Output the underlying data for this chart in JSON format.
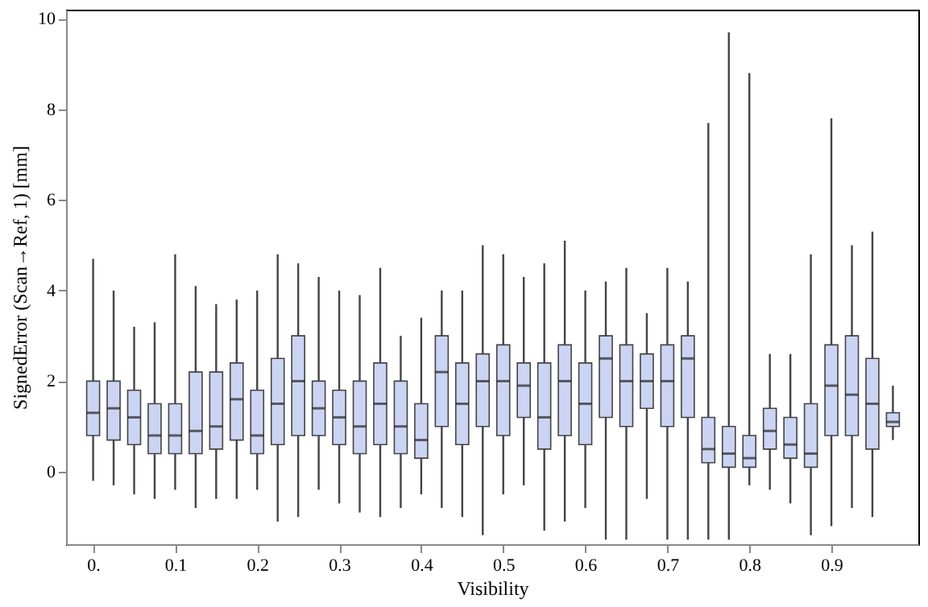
{
  "chart_data": {
    "type": "box",
    "xlabel": "Visibility",
    "ylabel": "SignedError (Scan→Ref, 1) [mm]",
    "x": [
      0,
      0.025,
      0.05,
      0.075,
      0.1,
      0.125,
      0.15,
      0.175,
      0.2,
      0.225,
      0.25,
      0.275,
      0.3,
      0.325,
      0.35,
      0.375,
      0.4,
      0.425,
      0.45,
      0.475,
      0.5,
      0.525,
      0.55,
      0.575,
      0.6,
      0.625,
      0.65,
      0.675,
      0.7,
      0.725,
      0.75,
      0.775,
      0.8,
      0.825,
      0.85,
      0.875,
      0.9,
      0.925,
      0.95,
      0.975
    ],
    "boxes": [
      {
        "low": -0.2,
        "q1": 0.8,
        "median": 1.3,
        "q3": 2.0,
        "high": 4.7
      },
      {
        "low": -0.3,
        "q1": 0.7,
        "median": 1.4,
        "q3": 2.0,
        "high": 4.0
      },
      {
        "low": -0.5,
        "q1": 0.6,
        "median": 1.2,
        "q3": 1.8,
        "high": 3.2
      },
      {
        "low": -0.6,
        "q1": 0.4,
        "median": 0.8,
        "q3": 1.5,
        "high": 3.3
      },
      {
        "low": -0.4,
        "q1": 0.4,
        "median": 0.8,
        "q3": 1.5,
        "high": 4.8
      },
      {
        "low": -0.8,
        "q1": 0.4,
        "median": 0.9,
        "q3": 2.2,
        "high": 4.1
      },
      {
        "low": -0.6,
        "q1": 0.5,
        "median": 1.0,
        "q3": 2.2,
        "high": 3.7
      },
      {
        "low": -0.6,
        "q1": 0.7,
        "median": 1.6,
        "q3": 2.4,
        "high": 3.8
      },
      {
        "low": -0.4,
        "q1": 0.4,
        "median": 0.8,
        "q3": 1.8,
        "high": 4.0
      },
      {
        "low": -1.1,
        "q1": 0.6,
        "median": 1.5,
        "q3": 2.5,
        "high": 4.8
      },
      {
        "low": -1.0,
        "q1": 0.8,
        "median": 2.0,
        "q3": 3.0,
        "high": 4.6
      },
      {
        "low": -0.4,
        "q1": 0.8,
        "median": 1.4,
        "q3": 2.0,
        "high": 4.3
      },
      {
        "low": -0.7,
        "q1": 0.6,
        "median": 1.2,
        "q3": 1.8,
        "high": 4.0
      },
      {
        "low": -0.9,
        "q1": 0.4,
        "median": 1.0,
        "q3": 2.0,
        "high": 3.9
      },
      {
        "low": -1.0,
        "q1": 0.6,
        "median": 1.5,
        "q3": 2.4,
        "high": 4.5
      },
      {
        "low": -0.8,
        "q1": 0.4,
        "median": 1.0,
        "q3": 2.0,
        "high": 3.0
      },
      {
        "low": -0.5,
        "q1": 0.3,
        "median": 0.7,
        "q3": 1.5,
        "high": 3.4
      },
      {
        "low": -0.8,
        "q1": 1.0,
        "median": 2.2,
        "q3": 3.0,
        "high": 4.0
      },
      {
        "low": -1.0,
        "q1": 0.6,
        "median": 1.5,
        "q3": 2.4,
        "high": 4.0
      },
      {
        "low": -1.4,
        "q1": 1.0,
        "median": 2.0,
        "q3": 2.6,
        "high": 5.0
      },
      {
        "low": -0.5,
        "q1": 0.8,
        "median": 2.0,
        "q3": 2.8,
        "high": 4.8
      },
      {
        "low": -0.3,
        "q1": 1.2,
        "median": 1.9,
        "q3": 2.4,
        "high": 4.3
      },
      {
        "low": -1.3,
        "q1": 0.5,
        "median": 1.2,
        "q3": 2.4,
        "high": 4.6
      },
      {
        "low": -1.1,
        "q1": 0.8,
        "median": 2.0,
        "q3": 2.8,
        "high": 5.1
      },
      {
        "low": -0.8,
        "q1": 0.6,
        "median": 1.5,
        "q3": 2.4,
        "high": 4.0
      },
      {
        "low": -1.5,
        "q1": 1.2,
        "median": 2.5,
        "q3": 3.0,
        "high": 4.2
      },
      {
        "low": -1.5,
        "q1": 1.0,
        "median": 2.0,
        "q3": 2.8,
        "high": 4.5
      },
      {
        "low": -0.6,
        "q1": 1.4,
        "median": 2.0,
        "q3": 2.6,
        "high": 3.5
      },
      {
        "low": -1.5,
        "q1": 1.0,
        "median": 2.0,
        "q3": 2.8,
        "high": 4.5
      },
      {
        "low": -1.5,
        "q1": 1.2,
        "median": 2.5,
        "q3": 3.0,
        "high": 4.2
      },
      {
        "low": -1.5,
        "q1": 0.2,
        "median": 0.5,
        "q3": 1.2,
        "high": 7.7
      },
      {
        "low": -1.5,
        "q1": 0.1,
        "median": 0.4,
        "q3": 1.0,
        "high": 9.7
      },
      {
        "low": -0.3,
        "q1": 0.1,
        "median": 0.3,
        "q3": 0.8,
        "high": 8.8
      },
      {
        "low": -0.4,
        "q1": 0.5,
        "median": 0.9,
        "q3": 1.4,
        "high": 2.6
      },
      {
        "low": -0.7,
        "q1": 0.3,
        "median": 0.6,
        "q3": 1.2,
        "high": 2.6
      },
      {
        "low": -1.4,
        "q1": 0.1,
        "median": 0.4,
        "q3": 1.5,
        "high": 4.8
      },
      {
        "low": -1.2,
        "q1": 0.8,
        "median": 1.9,
        "q3": 2.8,
        "high": 7.8
      },
      {
        "low": -0.8,
        "q1": 0.8,
        "median": 1.7,
        "q3": 3.0,
        "high": 5.0
      },
      {
        "low": -1.0,
        "q1": 0.5,
        "median": 1.5,
        "q3": 2.5,
        "high": 5.3
      },
      {
        "low": 0.7,
        "q1": 1.0,
        "median": 1.1,
        "q3": 1.3,
        "high": 1.9
      }
    ],
    "color": "#ccd4f4",
    "xlim": [
      -0.033,
      1.006
    ],
    "xticks": [
      {
        "value": 0,
        "label": "0."
      },
      0.1,
      0.2,
      0.3,
      0.4,
      0.5,
      0.6,
      0.7,
      0.8,
      0.9
    ],
    "ylim": [
      -1.6,
      10.2
    ],
    "yticks": [
      0,
      2,
      4,
      6,
      8,
      10
    ],
    "grid": false
  }
}
